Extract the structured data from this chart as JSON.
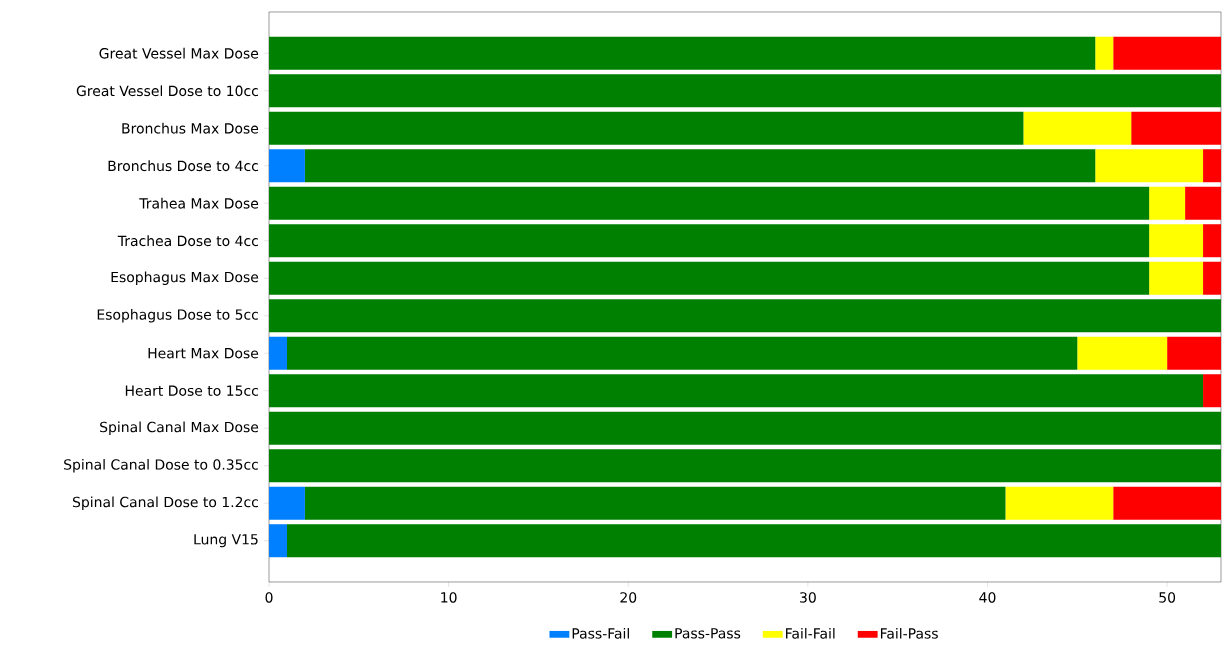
{
  "chart_data": {
    "type": "bar",
    "orientation": "horizontal",
    "stacked": true,
    "categories": [
      "Great Vessel Max Dose",
      "Great Vessel Dose to 10cc",
      "Bronchus Max Dose",
      "Bronchus Dose to 4cc",
      "Trahea Max Dose",
      "Trachea Dose to 4cc",
      "Esophagus Max Dose",
      "Esophagus Dose to 5cc",
      "Heart Max Dose",
      "Heart Dose to 15cc",
      "Spinal Canal Max Dose",
      "Spinal Canal Dose to 0.35cc",
      "Spinal Canal Dose to 1.2cc",
      "Lung V15"
    ],
    "series": [
      {
        "name": "Pass-Fail",
        "color": "#007fff",
        "values": [
          0,
          0,
          0,
          2,
          0,
          0,
          0,
          0,
          1,
          0,
          0,
          0,
          2,
          1
        ]
      },
      {
        "name": "Pass-Pass",
        "color": "#008000",
        "values": [
          46,
          53,
          42,
          44,
          49,
          49,
          49,
          53,
          44,
          52,
          53,
          53,
          39,
          52
        ]
      },
      {
        "name": "Fail-Fail",
        "color": "#ffff00",
        "values": [
          1,
          0,
          6,
          6,
          2,
          3,
          3,
          0,
          5,
          0,
          0,
          0,
          6,
          0
        ]
      },
      {
        "name": "Fail-Pass",
        "color": "#ff0000",
        "values": [
          6,
          0,
          5,
          1,
          2,
          1,
          1,
          0,
          3,
          1,
          0,
          0,
          6,
          0
        ]
      }
    ],
    "xlim": [
      0,
      53
    ],
    "xticks": [
      0,
      10,
      20,
      30,
      40,
      50
    ],
    "legend": "bottom",
    "grid": false
  }
}
